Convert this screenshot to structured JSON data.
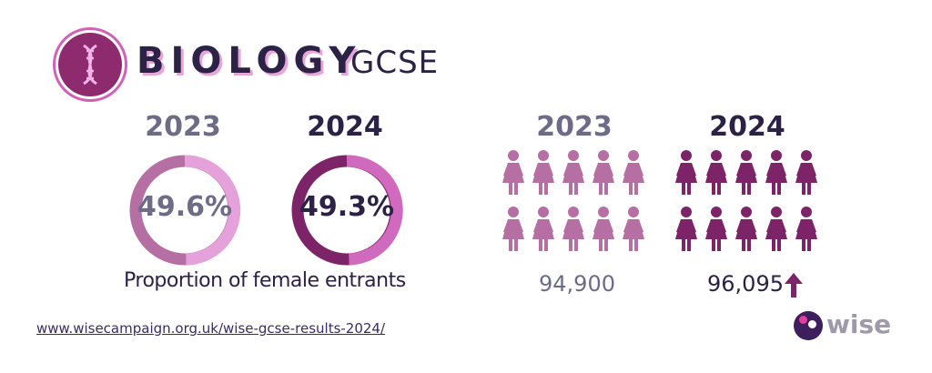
{
  "header": {
    "title": "BIOLOGY",
    "subtitle": "GCSE",
    "icon": "dna-icon"
  },
  "donuts": [
    {
      "year": "2023",
      "value": "49.6%"
    },
    {
      "year": "2024",
      "value": "49.3%"
    }
  ],
  "donut_caption": "Proportion of female entrants",
  "people": [
    {
      "year": "2023",
      "count": "94,900"
    },
    {
      "year": "2024",
      "count": "96,095"
    }
  ],
  "link": "www.wisecampaign.org.uk/wise-gcse-results-2024/",
  "brand": "wise",
  "colors": {
    "dark_navy": "#2b2245",
    "grey_text": "#6e6b87",
    "light_mauve": "#b66fa3",
    "light_pink": "#e5a1d9",
    "deep_purple": "#7c2467",
    "bright_pink": "#d06abe"
  }
}
